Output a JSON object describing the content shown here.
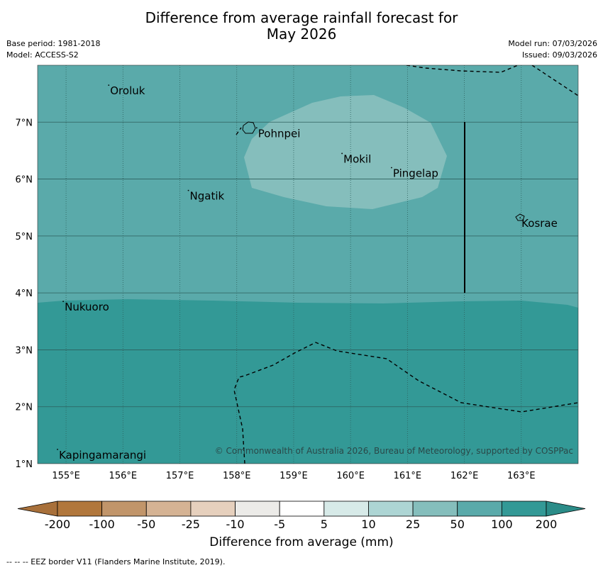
{
  "title": {
    "line1": "Difference from average rainfall forecast for",
    "line2": "May 2026"
  },
  "meta": {
    "base_period": "Base period: 1981-2018",
    "model": "Model: ACCESS-S2",
    "model_run": "Model run: 07/03/2026",
    "issued": "Issued: 09/03/2026"
  },
  "map": {
    "lon_range": [
      154.5,
      164.0
    ],
    "lat_range": [
      1.0,
      8.0
    ],
    "lon_ticks": [
      155,
      156,
      157,
      158,
      159,
      160,
      161,
      162,
      163
    ],
    "lon_labels": [
      "155°E",
      "156°E",
      "157°E",
      "158°E",
      "159°E",
      "160°E",
      "161°E",
      "162°E",
      "163°E"
    ],
    "lat_ticks": [
      1,
      2,
      3,
      4,
      5,
      6,
      7
    ],
    "lat_labels": [
      "1°N",
      "2°N",
      "3°N",
      "4°N",
      "5°N",
      "6°N",
      "7°N"
    ],
    "places": [
      {
        "name": "Oroluk",
        "lon": 155.75,
        "lat": 7.65
      },
      {
        "name": "Pohnpei",
        "lon": 158.35,
        "lat": 6.9
      },
      {
        "name": "Mokil",
        "lon": 159.85,
        "lat": 6.45
      },
      {
        "name": "Ngatik",
        "lon": 157.15,
        "lat": 5.8
      },
      {
        "name": "Pingelap",
        "lon": 160.72,
        "lat": 6.2
      },
      {
        "name": "Kosrae",
        "lon": 162.98,
        "lat": 5.32
      },
      {
        "name": "Nukuoro",
        "lon": 154.95,
        "lat": 3.85
      },
      {
        "name": "Kapingamarangi",
        "lon": 154.85,
        "lat": 1.25
      }
    ],
    "copyright": "© Commonwealth of Australia 2026, Bureau of Meteorology, supported by COSPPac",
    "colors": {
      "region_25_50": "#85bebc",
      "region_50_100": "#5aaaaa",
      "region_100_200": "#339996"
    }
  },
  "colorbar": {
    "title": "Difference from average (mm)",
    "tick_labels": [
      "-200",
      "-100",
      "-50",
      "-25",
      "-10",
      "-5",
      "5",
      "10",
      "25",
      "50",
      "100",
      "200"
    ],
    "colors": [
      "#a8703a",
      "#b1773c",
      "#c1956a",
      "#d5b394",
      "#e6d0bd",
      "#ecebe8",
      "#ffffff",
      "#d7eae8",
      "#add5d4",
      "#85bebc",
      "#5aaaaa",
      "#339996",
      "#2b8c88"
    ]
  },
  "footnote": "--  --  -- EEZ border V11 (Flanders Marine Institute, 2019)."
}
